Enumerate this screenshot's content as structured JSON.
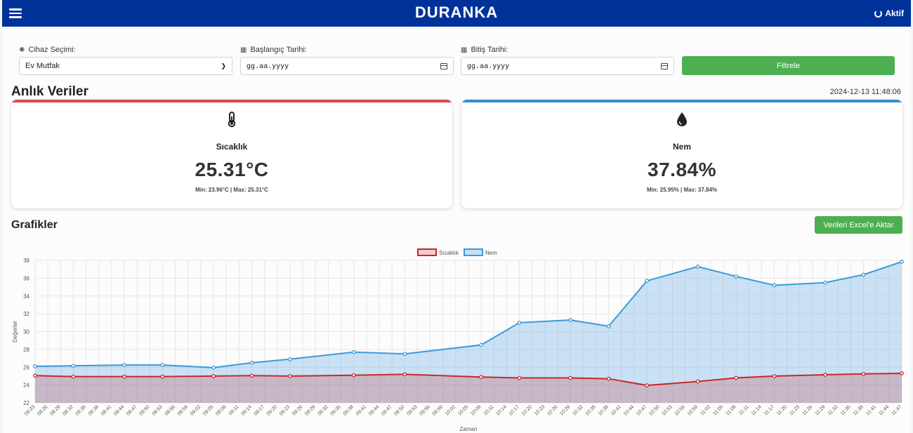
{
  "header": {
    "logo": "DURANKA",
    "status": "Aktif",
    "menu_icon": "hamburger-icon",
    "status_icon": "refresh-ring-icon"
  },
  "filters": {
    "device": {
      "label": "Cihaz Seçimi:",
      "icon": "chip-icon",
      "value": "Ev Mutfak"
    },
    "start": {
      "label": "Başlangıç Tarihi:",
      "icon": "calendar-icon",
      "placeholder": "gg.aa.yyyy"
    },
    "end": {
      "label": "Bitiş Tarihi:",
      "icon": "calendar-icon",
      "placeholder": "gg.aa.yyyy"
    },
    "filter_button": "Filtrele"
  },
  "live": {
    "title": "Anlık Veriler",
    "timestamp": "2024-12-13 11:48:06",
    "temperature": {
      "icon": "thermometer-icon",
      "title": "Sıcaklık",
      "value": "25.31°C",
      "minmax": "Min: 23.96°C | Max: 25.31°C",
      "color": "#e53935"
    },
    "humidity": {
      "icon": "water-drop-icon",
      "title": "Nem",
      "value": "37.84%",
      "minmax": "Min: 25.95% | Max: 37.84%",
      "color": "#3a8fd0"
    }
  },
  "charts": {
    "title": "Grafikler",
    "export_button": "Verileri Excel'e Aktar"
  },
  "chart_data": {
    "type": "line",
    "xlabel": "Zaman",
    "ylabel": "Değerler",
    "ylim": [
      22,
      38
    ],
    "yticks": [
      22,
      24,
      26,
      28,
      30,
      32,
      34,
      36,
      38
    ],
    "grid": true,
    "legend": "top-center",
    "x": [
      "08:23",
      "08:26",
      "08:29",
      "08:32",
      "08:35",
      "08:38",
      "08:41",
      "08:44",
      "08:47",
      "08:50",
      "08:53",
      "08:56",
      "08:59",
      "09:02",
      "09:05",
      "09:08",
      "09:11",
      "09:14",
      "09:17",
      "09:20",
      "09:23",
      "09:26",
      "09:29",
      "09:32",
      "09:35",
      "09:38",
      "09:41",
      "09:44",
      "09:47",
      "09:50",
      "09:53",
      "09:56",
      "09:59",
      "10:02",
      "10:05",
      "10:08",
      "10:11",
      "10:14",
      "10:17",
      "10:20",
      "10:23",
      "10:26",
      "10:29",
      "10:32",
      "10:35",
      "10:38",
      "10:41",
      "10:44",
      "10:47",
      "10:50",
      "10:53",
      "10:56",
      "10:59",
      "11:02",
      "11:05",
      "11:08",
      "11:11",
      "11:14",
      "11:17",
      "11:20",
      "11:23",
      "11:26",
      "11:29",
      "11:32",
      "11:35",
      "11:38",
      "11:41",
      "11:44",
      "11:47"
    ],
    "series": [
      {
        "name": "Sıcaklık",
        "color": "#c62828",
        "fill": "rgba(198,40,40,0.22)",
        "points": [
          [
            0,
            25.05
          ],
          [
            3,
            24.95
          ],
          [
            7,
            24.95
          ],
          [
            10,
            24.95
          ],
          [
            14,
            25.0
          ],
          [
            17,
            25.05
          ],
          [
            20,
            25.0
          ],
          [
            25,
            25.1
          ],
          [
            29,
            25.2
          ],
          [
            35,
            24.9
          ],
          [
            38,
            24.8
          ],
          [
            42,
            24.8
          ],
          [
            45,
            24.7
          ],
          [
            48,
            23.96
          ],
          [
            52,
            24.4
          ],
          [
            55,
            24.8
          ],
          [
            58,
            25.0
          ],
          [
            62,
            25.15
          ],
          [
            65,
            25.25
          ],
          [
            68,
            25.31
          ]
        ]
      },
      {
        "name": "Nem",
        "color": "#3a9ad9",
        "fill": "rgba(120,180,230,0.38)",
        "points": [
          [
            0,
            26.1
          ],
          [
            3,
            26.15
          ],
          [
            7,
            26.25
          ],
          [
            10,
            26.25
          ],
          [
            14,
            25.95
          ],
          [
            17,
            26.5
          ],
          [
            20,
            26.9
          ],
          [
            25,
            27.7
          ],
          [
            29,
            27.5
          ],
          [
            35,
            28.5
          ],
          [
            38,
            31.0
          ],
          [
            42,
            31.3
          ],
          [
            45,
            30.6
          ],
          [
            48,
            35.7
          ],
          [
            52,
            37.3
          ],
          [
            55,
            36.2
          ],
          [
            58,
            35.2
          ],
          [
            62,
            35.5
          ],
          [
            65,
            36.4
          ],
          [
            68,
            37.84
          ]
        ]
      }
    ]
  }
}
